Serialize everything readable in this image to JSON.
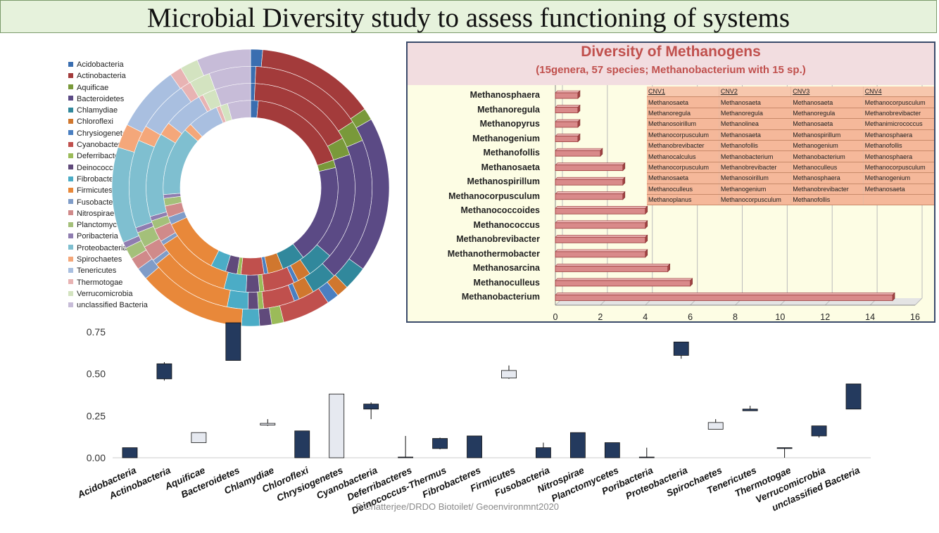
{
  "title": "Microbial Diversity study to assess functioning of systems",
  "credit": "S Chatterjee/DRDO Biotoilet/ Geoenvironmnt2020",
  "chart_data": [
    {
      "type": "pie",
      "subtype": "donut-multilevel",
      "legend_position": "left",
      "categories": [
        "Acidobacteria",
        "Actinobacteria",
        "Aquificae",
        "Bacteroidetes",
        "Chlamydiae",
        "Chloroflexi",
        "Chrysiogenetes",
        "Cyanobacteria",
        "Deferribacteres",
        "Deinococcus-Thermus",
        "Fibrobacteres",
        "Firmicutes",
        "Fusobacteria",
        "Nitrospirae",
        "Planctomycetes",
        "Poribacteria",
        "Proteobacteria",
        "Spirochaetes",
        "Tenericutes",
        "Thermotogae",
        "Verrucomicrobia",
        "unclassified  Bacteria"
      ],
      "colors": [
        "#3a6eb0",
        "#a33b3b",
        "#79993a",
        "#5b4a85",
        "#31889c",
        "#d0772e",
        "#4a7fc1",
        "#c0504d",
        "#9bbb59",
        "#604a7b",
        "#4bacc6",
        "#e8883a",
        "#7f9cc8",
        "#d08a8a",
        "#a4c07a",
        "#8f7db0",
        "#7fbfd0",
        "#f4a77a",
        "#a9bfe0",
        "#e8b3b3",
        "#d3e3c0",
        "#c7bcd8"
      ],
      "series": [
        {
          "values": [
            2,
            26,
            2,
            26,
            6,
            4,
            1,
            6,
            1,
            3,
            4,
            15,
            2,
            3,
            2,
            1,
            18,
            2,
            8,
            1,
            2,
            6
          ]
        },
        {
          "values": [
            1,
            24,
            4,
            24,
            6,
            3,
            1,
            7,
            1,
            3,
            5,
            17,
            1,
            3,
            2,
            1,
            19,
            3,
            9,
            1,
            3,
            8
          ]
        },
        {
          "values": [
            1,
            22,
            4,
            28,
            5,
            3,
            1,
            6,
            1,
            2,
            4,
            16,
            1,
            3,
            3,
            1,
            17,
            3,
            10,
            2,
            4,
            8
          ]
        },
        {
          "values": [
            2,
            20,
            2,
            26,
            4,
            2,
            2,
            8,
            2,
            2,
            3,
            18,
            2,
            2,
            2,
            1,
            16,
            4,
            11,
            2,
            3,
            9
          ]
        }
      ]
    },
    {
      "type": "bar",
      "orientation": "horizontal",
      "title": "Diversity of Methanogens",
      "subtitle": "(15genera, 57 species; Methanobacterium with 15 sp.)",
      "categories": [
        "Methanosphaera",
        "Methanoregula",
        "Methanopyrus",
        "Methanogenium",
        "Methanofollis",
        "Methanosaeta",
        "Methanospirillum",
        "Methanocorpusculum",
        "Methanococcoides",
        "Methanococcus",
        "Methanobrevibacter",
        "Methanothermobacter",
        "Methanosarcina",
        "Methanoculleus",
        "Methanobacterium"
      ],
      "values": [
        1,
        1,
        1,
        1,
        2,
        3,
        3,
        3,
        4,
        4,
        4,
        4,
        5,
        6,
        15
      ],
      "xlim": [
        0,
        16
      ],
      "xticks": [
        0,
        2,
        4,
        6,
        8,
        10,
        12,
        14,
        16
      ],
      "color": "#d98a8a",
      "grid": true
    },
    {
      "type": "table",
      "columns": [
        "CNV1",
        "CNV2",
        "CNV3",
        "CNV4"
      ],
      "rows": [
        [
          "Methanosaeta",
          "Methanosaeta",
          "Methanosaeta",
          "Methanocorpusculum"
        ],
        [
          "Methanoregula",
          "Methanoregula",
          "Methanoregula",
          "Methanobrevibacter"
        ],
        [
          "Methanosoirillum",
          "Methanolinea",
          "Methanosaeta",
          "Methanimicrococcus"
        ],
        [
          "Methanocorpusculum",
          "Methanosaeta",
          "Methanospirillum",
          "Methanosphaera"
        ],
        [
          "Methanobrevibacter",
          "Methanofollis",
          "Methanogenium",
          "Methanofollis"
        ],
        [
          "Methanocalculus",
          "Methanobacterium",
          "Methanobacterium",
          "Methanosphaera"
        ],
        [
          "Methanocorpusculum",
          "Methanobrevibacter",
          "Methanoculleus",
          "Methanocorpusculum"
        ],
        [
          "Methanosaeta",
          "Methanosoirillum",
          "Methanosphaera",
          "Methanogenium"
        ],
        [
          "Methanoculleus",
          "Methanogenium",
          "Methanobrevibacter",
          "Methanosaeta"
        ],
        [
          "Methanoplanus",
          "Methanocorpusculum",
          "Methanofollis",
          ""
        ]
      ]
    },
    {
      "type": "bar",
      "subtype": "box",
      "categories": [
        "Acidobacteria",
        "Actinobacteria",
        "Aquificae",
        "Bacteroidetes",
        "Chlamydiae",
        "Chloroflexi",
        "Chrysiogenetes",
        "Cyanobacteria",
        "Deferribacteres",
        "Deinococcus-Thermus",
        "Fibrobacteres",
        "Firmicutes",
        "Fusobacteria",
        "Nitrospirae",
        "Planctomycetes",
        "Poribacteria",
        "Proteobacteria",
        "Spirochaetes",
        "Tenericutes",
        "Thermotogae",
        "Verrucomicrobia",
        "unclassified  Bacteria"
      ],
      "box_low": [
        0.0,
        0.47,
        0.09,
        0.58,
        0.195,
        0.0,
        0.0,
        0.29,
        0.0,
        0.055,
        0.0,
        0.475,
        0.0,
        0.0,
        0.0,
        0.0,
        0.61,
        0.17,
        0.28,
        0.055,
        0.13,
        0.29
      ],
      "box_high": [
        0.06,
        0.56,
        0.15,
        0.81,
        0.205,
        0.16,
        0.38,
        0.32,
        0.0,
        0.115,
        0.13,
        0.52,
        0.06,
        0.15,
        0.09,
        0.0,
        0.69,
        0.21,
        0.29,
        0.06,
        0.19,
        0.44
      ],
      "whisker_low": [
        0.0,
        0.46,
        0.09,
        0.58,
        0.19,
        0.0,
        0.0,
        0.23,
        0.0,
        0.05,
        0.0,
        0.47,
        0.0,
        0.0,
        0.0,
        0.0,
        0.59,
        0.17,
        0.28,
        0.0,
        0.12,
        0.29
      ],
      "whisker_high": [
        0.06,
        0.57,
        0.15,
        0.81,
        0.23,
        0.16,
        0.38,
        0.33,
        0.13,
        0.12,
        0.13,
        0.55,
        0.09,
        0.15,
        0.09,
        0.06,
        0.69,
        0.23,
        0.31,
        0.06,
        0.19,
        0.44
      ],
      "fill": [
        "dark",
        "dark",
        "light",
        "dark",
        "light",
        "dark",
        "light",
        "dark",
        "dark",
        "dark",
        "dark",
        "light",
        "dark",
        "dark",
        "dark",
        "dark",
        "dark",
        "light",
        "dark",
        "dark",
        "dark",
        "dark"
      ],
      "ylim": [
        0,
        0.8
      ],
      "yticks": [
        0.0,
        0.25,
        0.5,
        0.75
      ],
      "ytick_labels": [
        "0.00",
        "0.25",
        "0.50",
        "0.75"
      ],
      "colors": {
        "dark": "#243a5e",
        "light": "#e6e9f0"
      },
      "grid": false
    }
  ]
}
